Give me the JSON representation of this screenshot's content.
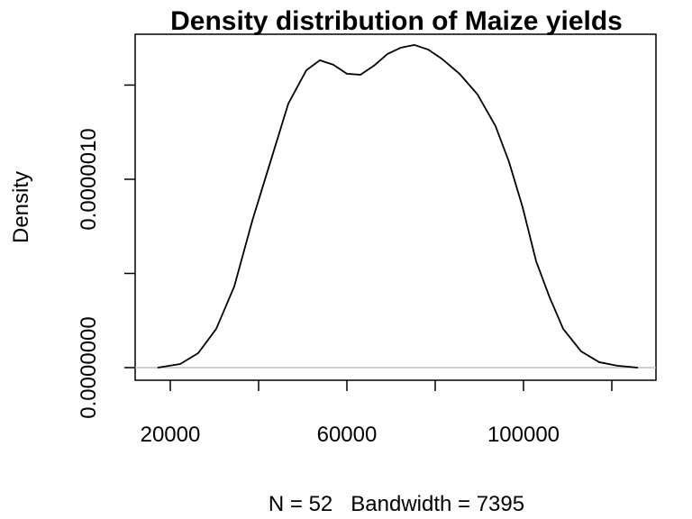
{
  "chart_data": {
    "type": "line",
    "title": "Density distribution of Maize yields",
    "x_label": "N = 52   Bandwidth = 7395",
    "y_label": "Density",
    "x": [
      17143,
      22245,
      26327,
      30408,
      34490,
      38571,
      42653,
      46735,
      50816,
      53878,
      56939,
      60000,
      63061,
      66122,
      69184,
      72245,
      75306,
      78367,
      81429,
      85510,
      89592,
      93673,
      96735,
      99796,
      102857,
      105918,
      108980,
      113061,
      117143,
      121224,
      125918
    ],
    "series": [
      {
        "name": "Density",
        "color": "#000000",
        "values": [
          0,
          1.9e-08,
          7.7e-08,
          2.06e-07,
          4.31e-07,
          7.8e-07,
          1.091e-06,
          1.402e-06,
          1.579e-06,
          1.632e-06,
          1.608e-06,
          1.56e-06,
          1.555e-06,
          1.603e-06,
          1.665e-06,
          1.699e-06,
          1.713e-06,
          1.689e-06,
          1.641e-06,
          1.56e-06,
          1.45e-06,
          1.282e-06,
          1.091e-06,
          8.52e-07,
          5.65e-07,
          3.73e-07,
          2.06e-07,
          8.6e-08,
          2.9e-08,
          1e-08,
          0
        ]
      }
    ],
    "xlim": [
      12041,
      130000
    ],
    "ylim": [
      -6.7e-08,
      1.77e-06
    ],
    "xticks": [
      20000,
      {
        "value": 40000,
        "label": null
      },
      60000,
      {
        "value": 80000,
        "label": null
      },
      100000,
      {
        "value": 120000,
        "label": null
      }
    ],
    "yticks": [
      {
        "value": 0,
        "label": "0.0000000"
      },
      {
        "value": 5e-07,
        "label": null
      },
      {
        "value": 1e-06,
        "label": "0.0000010"
      },
      {
        "value": 1.5e-06,
        "label": null
      }
    ],
    "zero_line": true,
    "zero_line_color": "#bebebe",
    "grid": false
  }
}
